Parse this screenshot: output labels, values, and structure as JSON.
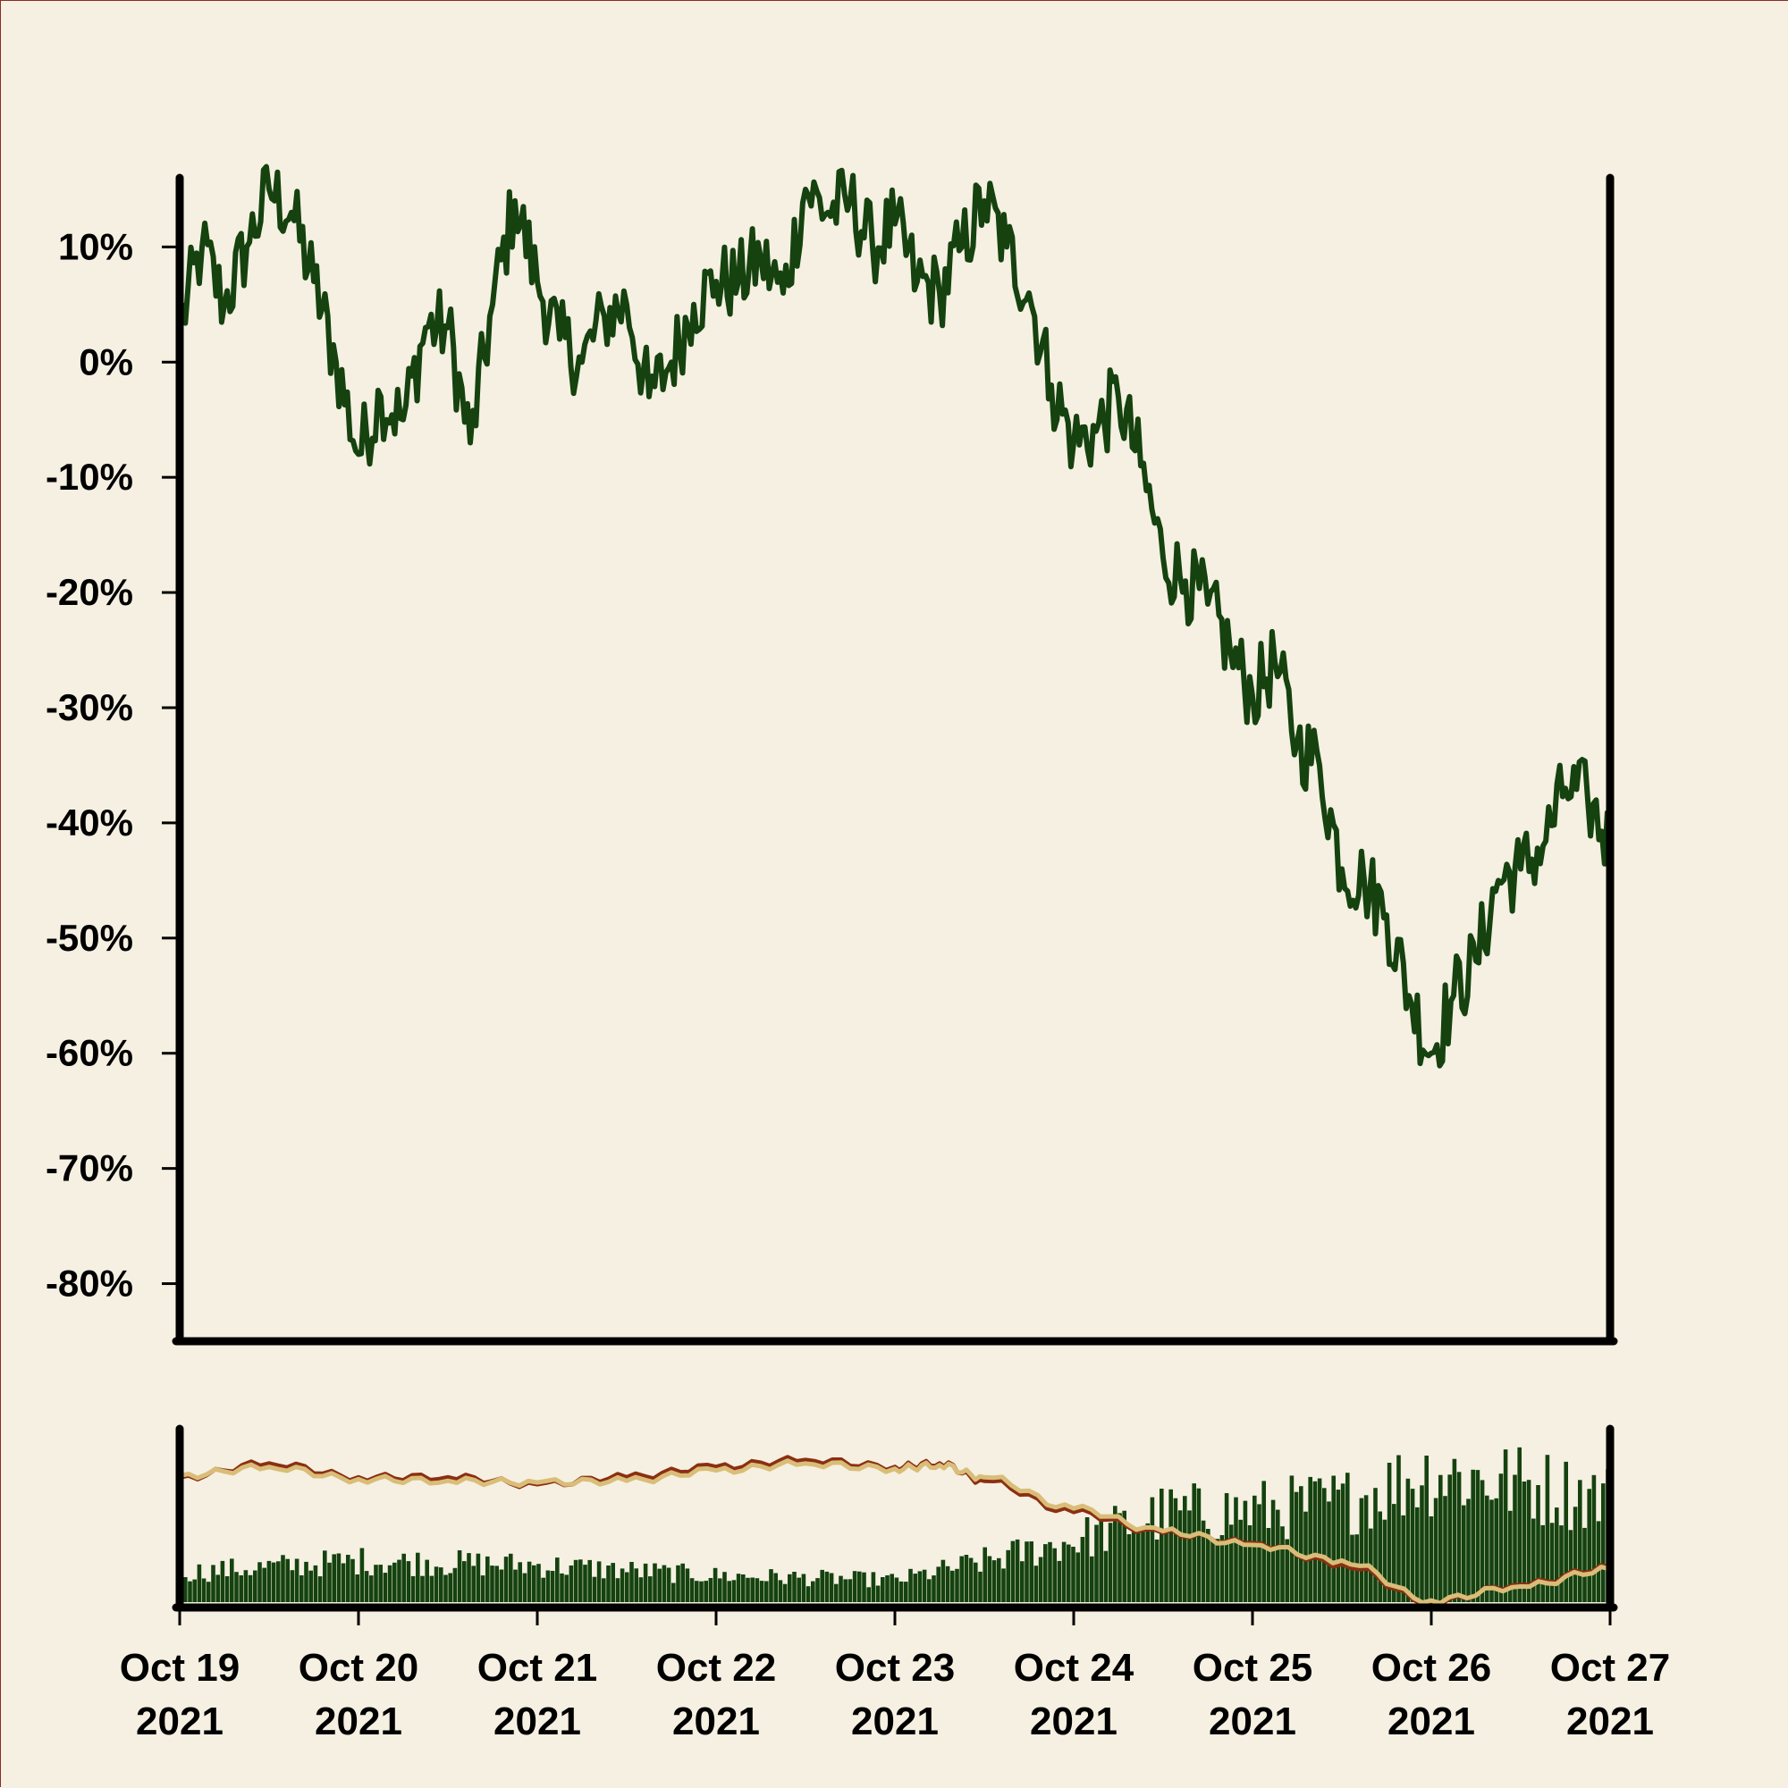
{
  "colors": {
    "background": "#f5f0e1",
    "border": "#8b2a2a",
    "axis": "#000000",
    "price_line": "#15420f",
    "volume_bars": "#15420f",
    "ma_fast": "#8b2f12",
    "ma_slow": "#d9bd78"
  },
  "chart_data": [
    {
      "type": "line",
      "panel": "main",
      "title": "",
      "xlabel": "",
      "ylabel": "",
      "ylim": [
        -0.85,
        0.16
      ],
      "y_ticks": [
        {
          "value": 0.1,
          "label": "10%"
        },
        {
          "value": 0.0,
          "label": "0%"
        },
        {
          "value": -0.1,
          "label": "-10%"
        },
        {
          "value": -0.2,
          "label": "-20%"
        },
        {
          "value": -0.3,
          "label": "-30%"
        },
        {
          "value": -0.4,
          "label": "-40%"
        },
        {
          "value": -0.5,
          "label": "-50%"
        },
        {
          "value": -0.6,
          "label": "-60%"
        },
        {
          "value": -0.7,
          "label": "-70%"
        },
        {
          "value": -0.8,
          "label": "-80%"
        }
      ],
      "grid": false,
      "series": [
        {
          "x": [
            "2021-10-19T00:00",
            "2021-10-19T03:00",
            "2021-10-19T06:00",
            "2021-10-19T09:00",
            "2021-10-19T12:00",
            "2021-10-19T15:00",
            "2021-10-19T18:00",
            "2021-10-19T21:00",
            "2021-10-20T00:00",
            "2021-10-20T03:00",
            "2021-10-20T06:00",
            "2021-10-20T09:00",
            "2021-10-20T12:00",
            "2021-10-20T15:00",
            "2021-10-20T18:00",
            "2021-10-20T21:00",
            "2021-10-21T00:00",
            "2021-10-21T03:00",
            "2021-10-21T06:00",
            "2021-10-21T09:00",
            "2021-10-21T12:00",
            "2021-10-21T15:00",
            "2021-10-21T18:00",
            "2021-10-21T21:00",
            "2021-10-22T00:00",
            "2021-10-22T03:00",
            "2021-10-22T06:00",
            "2021-10-22T09:00",
            "2021-10-22T12:00",
            "2021-10-22T15:00",
            "2021-10-22T18:00",
            "2021-10-22T21:00",
            "2021-10-23T00:00",
            "2021-10-23T03:00",
            "2021-10-23T06:00",
            "2021-10-23T09:00",
            "2021-10-23T12:00",
            "2021-10-23T15:00",
            "2021-10-23T18:00",
            "2021-10-23T21:00",
            "2021-10-24T00:00",
            "2021-10-24T03:00",
            "2021-10-24T06:00",
            "2021-10-24T09:00",
            "2021-10-24T12:00",
            "2021-10-24T15:00",
            "2021-10-24T18:00",
            "2021-10-24T21:00",
            "2021-10-25T00:00",
            "2021-10-25T03:00",
            "2021-10-25T06:00",
            "2021-10-25T09:00",
            "2021-10-25T12:00",
            "2021-10-25T15:00",
            "2021-10-25T18:00",
            "2021-10-25T21:00",
            "2021-10-26T00:00",
            "2021-10-26T03:00",
            "2021-10-26T06:00",
            "2021-10-26T09:00",
            "2021-10-26T12:00",
            "2021-10-26T15:00",
            "2021-10-26T18:00",
            "2021-10-26T21:00",
            "2021-10-27T00:00"
          ],
          "values": [
            0.03,
            0.1,
            0.05,
            0.1,
            0.15,
            0.13,
            0.07,
            0.0,
            -0.08,
            -0.03,
            -0.05,
            0.03,
            0.03,
            -0.07,
            0.05,
            0.14,
            0.07,
            0.02,
            0.0,
            0.04,
            0.05,
            -0.03,
            0.0,
            0.05,
            0.07,
            0.07,
            0.09,
            0.06,
            0.15,
            0.13,
            0.14,
            0.1,
            0.12,
            0.07,
            0.06,
            0.1,
            0.14,
            0.1,
            0.06,
            -0.02,
            -0.07,
            -0.06,
            -0.03,
            -0.09,
            -0.17,
            -0.19,
            -0.21,
            -0.25,
            -0.29,
            -0.26,
            -0.33,
            -0.35,
            -0.44,
            -0.45,
            -0.48,
            -0.55,
            -0.6,
            -0.55,
            -0.52,
            -0.45,
            -0.44,
            -0.42,
            -0.37,
            -0.38,
            -0.42
          ]
        }
      ]
    },
    {
      "type": "bar",
      "panel": "volume",
      "title": "",
      "x_ticks": [
        {
          "date": "2021-10-19",
          "label_line1": "Oct 19",
          "label_line2": "2021"
        },
        {
          "date": "2021-10-20",
          "label_line1": "Oct 20",
          "label_line2": "2021"
        },
        {
          "date": "2021-10-21",
          "label_line1": "Oct 21",
          "label_line2": "2021"
        },
        {
          "date": "2021-10-22",
          "label_line1": "Oct 22",
          "label_line2": "2021"
        },
        {
          "date": "2021-10-23",
          "label_line1": "Oct 23",
          "label_line2": "2021"
        },
        {
          "date": "2021-10-24",
          "label_line1": "Oct 24",
          "label_line2": "2021"
        },
        {
          "date": "2021-10-25",
          "label_line1": "Oct 25",
          "label_line2": "2021"
        },
        {
          "date": "2021-10-26",
          "label_line1": "Oct 26",
          "label_line2": "2021"
        },
        {
          "date": "2021-10-27",
          "label_line1": "Oct 27",
          "label_line2": "2021"
        }
      ],
      "ylim": [
        0,
        1
      ],
      "volume_profile_x": [
        "2021-10-19",
        "2021-10-20",
        "2021-10-21",
        "2021-10-22",
        "2021-10-23",
        "2021-10-23T12:00",
        "2021-10-24",
        "2021-10-24T12:00",
        "2021-10-25",
        "2021-10-25T12:00",
        "2021-10-26",
        "2021-10-26T12:00",
        "2021-10-27"
      ],
      "volume_profile_level": [
        0.2,
        0.28,
        0.25,
        0.18,
        0.15,
        0.28,
        0.42,
        0.6,
        0.62,
        0.68,
        0.88,
        0.8,
        0.7
      ],
      "series": [
        {
          "x": [
            "2021-10-19",
            "2021-10-19T12:00",
            "2021-10-20",
            "2021-10-20T12:00",
            "2021-10-21",
            "2021-10-21T12:00",
            "2021-10-22",
            "2021-10-22T12:00",
            "2021-10-23",
            "2021-10-23T06:00",
            "2021-10-23T12:00",
            "2021-10-24",
            "2021-10-24T12:00",
            "2021-10-25",
            "2021-10-25T12:00",
            "2021-10-26",
            "2021-10-26T12:00",
            "2021-10-27"
          ],
          "values": [
            0.72,
            0.8,
            0.72,
            0.72,
            0.68,
            0.72,
            0.78,
            0.82,
            0.78,
            0.8,
            0.7,
            0.52,
            0.4,
            0.34,
            0.22,
            0.0,
            0.1,
            0.2
          ]
        },
        {
          "x": [
            "2021-10-19",
            "2021-10-19T12:00",
            "2021-10-20",
            "2021-10-20T12:00",
            "2021-10-21",
            "2021-10-21T12:00",
            "2021-10-22",
            "2021-10-22T12:00",
            "2021-10-23",
            "2021-10-23T06:00",
            "2021-10-23T12:00",
            "2021-10-24",
            "2021-10-24T12:00",
            "2021-10-25",
            "2021-10-25T12:00",
            "2021-10-26",
            "2021-10-26T12:00",
            "2021-10-27"
          ],
          "values": [
            0.73,
            0.78,
            0.71,
            0.7,
            0.69,
            0.7,
            0.76,
            0.8,
            0.77,
            0.79,
            0.72,
            0.54,
            0.41,
            0.33,
            0.24,
            0.01,
            0.09,
            0.19
          ]
        }
      ]
    }
  ]
}
